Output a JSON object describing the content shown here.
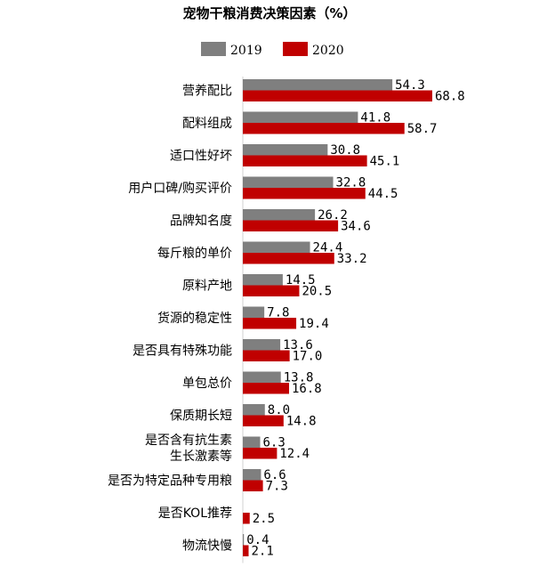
{
  "chart_data": {
    "type": "bar",
    "orientation": "horizontal",
    "title": "宠物干粮消费决策因素（%）",
    "xlabel": "",
    "ylabel": "",
    "xlim": [
      0,
      70
    ],
    "grid": false,
    "legend_position": "top",
    "categories": [
      "营养配比",
      "配料组成",
      "适口性好坏",
      "用户口碑/购买评价",
      "品牌知名度",
      "每斤粮的单价",
      "原料产地",
      "货源的稳定性",
      "是否具有特殊功能",
      "单包总价",
      "保质期长短",
      "是否含有抗生素\n生长激素等",
      "是否为特定品种专用粮",
      "是否KOL推荐",
      "物流快慢"
    ],
    "series": [
      {
        "name": "2019",
        "color": "#7f7f7f",
        "values": [
          54.3,
          41.8,
          30.8,
          32.8,
          26.2,
          24.4,
          14.5,
          7.8,
          13.6,
          13.8,
          8.0,
          6.3,
          6.6,
          null,
          0.4
        ],
        "labels": [
          "54.3",
          "41.8",
          "30.8",
          "32.8",
          "26.2",
          "24.4",
          "14.5",
          "7.8",
          "13.6",
          "13.8",
          "8.0",
          "6.3",
          "6.6",
          "",
          "0.4"
        ]
      },
      {
        "name": "2020",
        "color": "#c00000",
        "values": [
          68.8,
          58.7,
          45.1,
          44.5,
          34.6,
          33.2,
          20.5,
          19.4,
          17.0,
          16.8,
          14.8,
          12.4,
          7.3,
          2.5,
          2.1
        ],
        "labels": [
          "68.8",
          "58.7",
          "45.1",
          "44.5",
          "34.6",
          "33.2",
          "20.5",
          "19.4",
          "17.0",
          "16.8",
          "14.8",
          "12.4",
          "7.3",
          "2.5",
          "2.1"
        ]
      }
    ]
  }
}
